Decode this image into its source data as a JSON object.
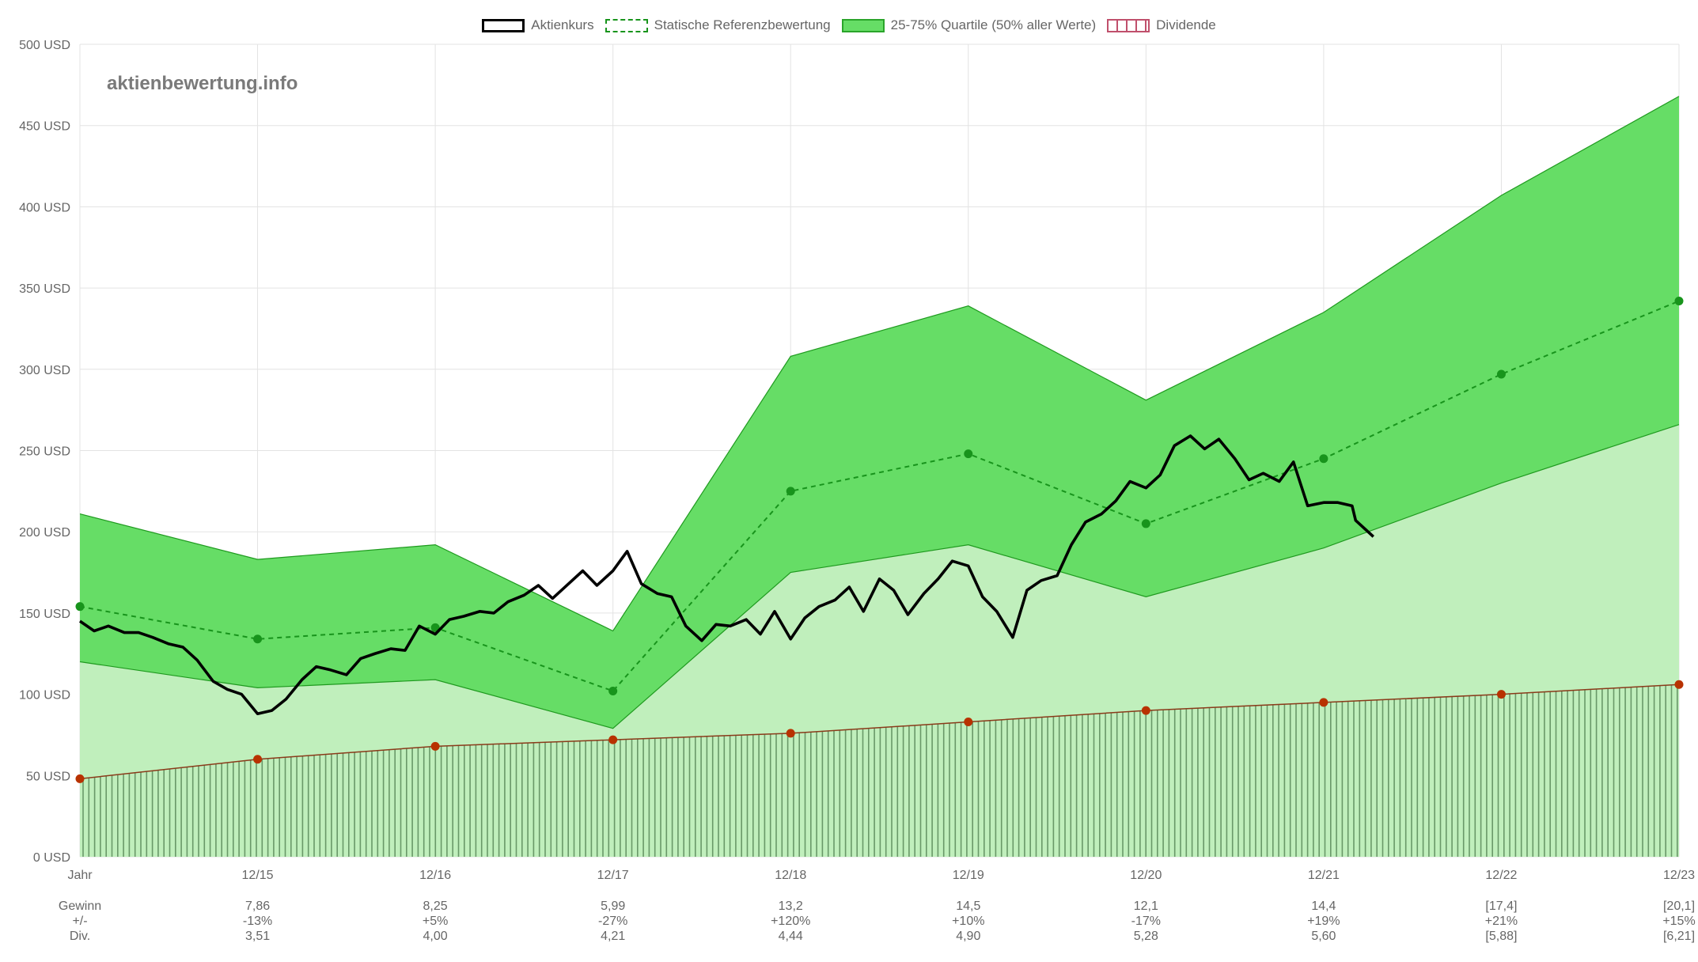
{
  "legend": {
    "price": "Aktienkurs",
    "reference": "Statische Referenzbewertung",
    "quartile": "25-75% Quartile (50% aller Werte)",
    "dividend": "Dividende"
  },
  "watermark": "aktienbewertung.info",
  "table": {
    "labels": {
      "year": "Jahr",
      "gewinn": "Gewinn",
      "change": "+/-",
      "div": "Div."
    },
    "columns": [
      {
        "year": "12/15",
        "gewinn": "7,86",
        "change": "-13%",
        "div": "3,51"
      },
      {
        "year": "12/16",
        "gewinn": "8,25",
        "change": "+5%",
        "div": "4,00"
      },
      {
        "year": "12/17",
        "gewinn": "5,99",
        "change": "-27%",
        "div": "4,21"
      },
      {
        "year": "12/18",
        "gewinn": "13,2",
        "change": "+120%",
        "div": "4,44"
      },
      {
        "year": "12/19",
        "gewinn": "14,5",
        "change": "+10%",
        "div": "4,90"
      },
      {
        "year": "12/20",
        "gewinn": "12,1",
        "change": "-17%",
        "div": "5,28"
      },
      {
        "year": "12/21",
        "gewinn": "14,4",
        "change": "+19%",
        "div": "5,60"
      },
      {
        "year": "12/22",
        "gewinn": "[17,4]",
        "change": "+21%",
        "div": "[5,88]"
      },
      {
        "year": "12/23",
        "gewinn": "[20,1]",
        "change": "+15%",
        "div": "[6,21]"
      }
    ]
  },
  "colors": {
    "upper_band": "#66dd66",
    "lower_band": "#c0efbc",
    "band_line": "#1f9a1f",
    "reference": "#18941c",
    "price": "#000000",
    "dividend_line": "#8a3a1a",
    "dividend_point": "#b83200",
    "dividend_fill": "#5a8a5a"
  },
  "chart_data": {
    "type": "area",
    "y_unit": "USD",
    "ylim": [
      0,
      500
    ],
    "y_ticks": [
      0,
      50,
      100,
      150,
      200,
      250,
      300,
      350,
      400,
      450,
      500
    ],
    "grid": true,
    "legend_position": "top-center",
    "x_ticks": [
      "Jahr",
      "12/15",
      "12/16",
      "12/17",
      "12/18",
      "12/19",
      "12/20",
      "12/21",
      "12/22",
      "12/23"
    ],
    "x_domain": [
      2014.92,
      2023.92
    ],
    "series": [
      {
        "name": "25-75% Quartile (50% aller Werte)",
        "x": [
          2014.92,
          2015.92,
          2016.92,
          2017.92,
          2018.92,
          2019.92,
          2020.92,
          2021.92,
          2022.92,
          2023.92
        ],
        "upper": [
          211,
          183,
          192,
          139,
          308,
          339,
          281,
          335,
          407,
          468
        ],
        "lower": [
          120,
          104,
          109,
          79,
          175,
          192,
          160,
          190,
          230,
          266
        ]
      },
      {
        "name": "Statische Referenzbewertung",
        "x": [
          2014.92,
          2015.92,
          2016.92,
          2017.92,
          2018.92,
          2019.92,
          2020.92,
          2021.92,
          2022.92,
          2023.92
        ],
        "values": [
          154,
          134,
          141,
          102,
          225,
          248,
          205,
          245,
          297,
          342
        ]
      },
      {
        "name": "Dividende",
        "x": [
          2014.92,
          2015.92,
          2016.92,
          2017.92,
          2018.92,
          2019.92,
          2020.92,
          2021.92,
          2022.92,
          2023.92
        ],
        "values": [
          48,
          60,
          68,
          72,
          76,
          83,
          90,
          95,
          100,
          106
        ]
      },
      {
        "name": "Aktienkurs",
        "x": [
          2014.92,
          2015.0,
          2015.08,
          2015.17,
          2015.25,
          2015.33,
          2015.42,
          2015.5,
          2015.58,
          2015.67,
          2015.75,
          2015.83,
          2015.92,
          2016.0,
          2016.08,
          2016.17,
          2016.25,
          2016.33,
          2016.42,
          2016.5,
          2016.58,
          2016.67,
          2016.75,
          2016.83,
          2016.92,
          2017.0,
          2017.08,
          2017.17,
          2017.25,
          2017.33,
          2017.42,
          2017.5,
          2017.58,
          2017.67,
          2017.75,
          2017.83,
          2017.92,
          2018.0,
          2018.08,
          2018.17,
          2018.25,
          2018.33,
          2018.42,
          2018.5,
          2018.58,
          2018.67,
          2018.75,
          2018.83,
          2018.92,
          2019.0,
          2019.08,
          2019.17,
          2019.25,
          2019.33,
          2019.42,
          2019.5,
          2019.58,
          2019.67,
          2019.75,
          2019.83,
          2019.92,
          2020.0,
          2020.08,
          2020.17,
          2020.25,
          2020.33,
          2020.42,
          2020.5,
          2020.58,
          2020.67,
          2020.75,
          2020.83,
          2020.92,
          2021.0,
          2021.08,
          2021.17,
          2021.25,
          2021.33,
          2021.42,
          2021.5,
          2021.58,
          2021.67,
          2021.75,
          2021.83,
          2021.92,
          2022.0,
          2022.08,
          2022.1,
          2022.2
        ],
        "values": [
          145,
          139,
          142,
          138,
          138,
          135,
          131,
          129,
          121,
          108,
          103,
          100,
          88,
          90,
          97,
          109,
          117,
          115,
          112,
          122,
          125,
          128,
          127,
          142,
          137,
          146,
          148,
          151,
          150,
          157,
          161,
          167,
          159,
          168,
          176,
          167,
          176,
          188,
          168,
          162,
          160,
          142,
          133,
          143,
          142,
          146,
          137,
          151,
          134,
          147,
          154,
          158,
          166,
          151,
          171,
          164,
          149,
          162,
          171,
          182,
          179,
          160,
          151,
          135,
          164,
          170,
          173,
          192,
          206,
          211,
          219,
          231,
          227,
          235,
          253,
          259,
          251,
          257,
          245,
          232,
          236,
          231,
          243,
          216,
          218,
          218,
          216,
          207,
          197
        ]
      }
    ]
  }
}
